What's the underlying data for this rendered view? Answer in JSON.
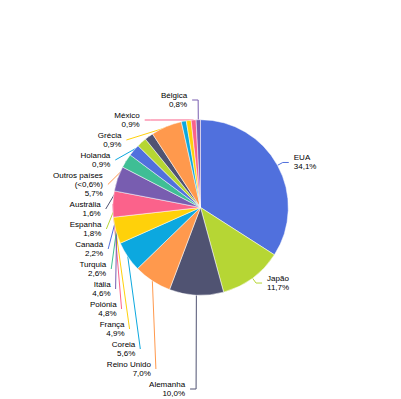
{
  "chart_data": {
    "type": "pie",
    "categories": [
      "EUA\n34,1%",
      "Japão\n11,7%",
      "Alemanha\n10,0%",
      "Reino Unido\n7,0%",
      "Coreia\n5,6%",
      "França\n4,9%",
      "Polónia\n4,8%",
      "Itália\n4,6%",
      "Turquia\n2,6%",
      "Canadá\n2,2%",
      "Espanha\n1,8%",
      "Austrália\n1,6%",
      "Outros países\n(<0,6%)\n5,7%",
      "Holanda\n0,9%",
      "Grécia\n0,9%",
      "México\n0,9%",
      "Bélgica\n0,8%"
    ],
    "values": [
      34.1,
      11.7,
      10.0,
      7.0,
      5.6,
      4.9,
      4.8,
      4.6,
      2.6,
      2.2,
      1.8,
      1.6,
      5.7,
      0.9,
      0.9,
      0.9,
      0.8
    ]
  }
}
